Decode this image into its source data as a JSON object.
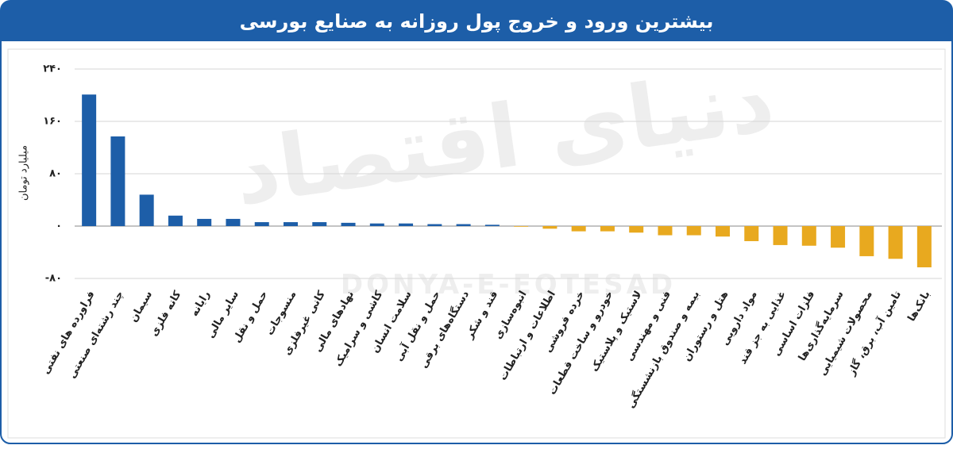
{
  "chart_data": {
    "type": "bar",
    "title": "بیشترین ورود و خروج پول روزانه به صنایع بورسی",
    "y_label": "میلیارد تومان",
    "watermark": [
      "دنیای اقتصاد",
      "DONYA-E-EQTESAD"
    ],
    "categories": [
      "فراورده های نفتی",
      "چند رشته‌ای صنعتی",
      "سیمان",
      "کانه فلزی",
      "رایانه",
      "سایر مالی",
      "حمل و نقل",
      "منسوجات",
      "کانی غیرفلزی",
      "نهادهای مالی",
      "کاشی و سرامیک",
      "سلامت انسان",
      "حمل و نقل آبی",
      "دستگاه‌های برقی",
      "قند و شکر",
      "انبوه‌سازی",
      "اطلاعات و ارتباطات",
      "خرده فروشی",
      "خودرو و ساخت قطعات",
      "لاستیک و پلاستیک",
      "فنی و مهندسی",
      "بیمه و صندوق بازنشستگی",
      "هتل و رستوران",
      "مواد دارویی",
      "غذایی به جز قند",
      "فلزات اساسی",
      "سرمایه‌گذاری‌ها",
      "محصولات شیمیایی",
      "تامین آب، برق، گاز",
      "بانک‌ها"
    ],
    "values": [
      201,
      137,
      48,
      16,
      11,
      11,
      6,
      6,
      6,
      5,
      4,
      4,
      3,
      3,
      2,
      -1,
      -4,
      -8,
      -8,
      -10,
      -14,
      -14,
      -16,
      -23,
      -29,
      -30,
      -33,
      -46,
      -50,
      -63
    ],
    "colors": {
      "positive": "#1d5ea8",
      "negative": "#e8a91f"
    },
    "ylim": [
      -80,
      240
    ],
    "yticks": [
      {
        "value": -80,
        "label": "-۸۰"
      },
      {
        "value": 0,
        "label": "۰"
      },
      {
        "value": 80,
        "label": "۸۰"
      },
      {
        "value": 160,
        "label": "۱۶۰"
      },
      {
        "value": 240,
        "label": "۲۴۰"
      }
    ],
    "grid": true
  }
}
